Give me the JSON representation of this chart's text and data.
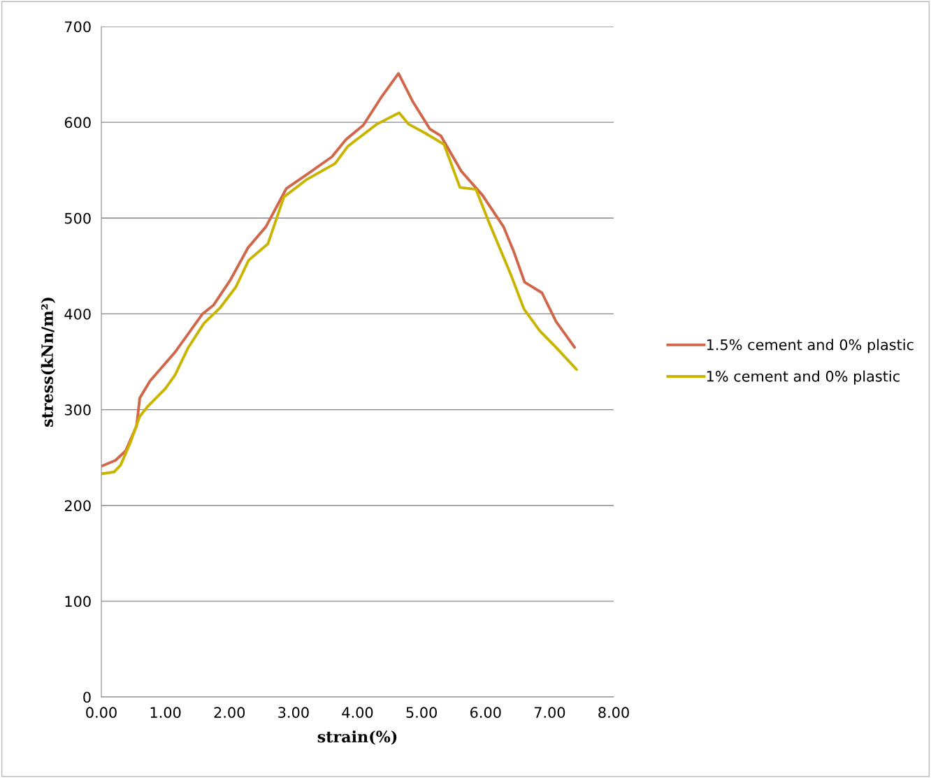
{
  "chart_data": {
    "type": "line",
    "xlabel": "strain(%)",
    "ylabel": "stress(kNn/m²)",
    "xlim": [
      0,
      8
    ],
    "xticks": [
      {
        "value": 0,
        "label": "0.00"
      },
      {
        "value": 1,
        "label": "1.00"
      },
      {
        "value": 2,
        "label": "2.00"
      },
      {
        "value": 3,
        "label": "3.00"
      },
      {
        "value": 4,
        "label": "4.00"
      },
      {
        "value": 5,
        "label": "5.00"
      },
      {
        "value": 6,
        "label": "6.00"
      },
      {
        "value": 7,
        "label": "7.00"
      },
      {
        "value": 8,
        "label": "8.00"
      }
    ],
    "ylim": [
      0,
      700
    ],
    "yticks": [
      0,
      100,
      200,
      300,
      400,
      500,
      600,
      700
    ],
    "grid": "y",
    "legend": "right",
    "marker": "none",
    "line_style": "solid",
    "series": [
      {
        "name": "1.5% cement and 0% plastic",
        "color": "#d0664a",
        "x": [
          0,
          0.22,
          0.38,
          0.55,
          0.6,
          0.76,
          1.15,
          1.58,
          1.75,
          2.02,
          2.29,
          2.57,
          2.89,
          3.22,
          3.6,
          3.82,
          4.09,
          4.37,
          4.64,
          4.86,
          5.13,
          5.3,
          5.62,
          5.95,
          6.28,
          6.44,
          6.61,
          6.88,
          7.1,
          7.39
        ],
        "values": [
          241,
          247,
          257,
          283,
          312,
          330,
          360,
          400,
          409,
          436,
          469,
          491,
          531,
          546,
          564,
          582,
          597,
          626,
          651,
          622,
          593,
          586,
          549,
          524,
          491,
          465,
          433,
          422,
          392,
          365
        ]
      },
      {
        "name": "1% cement and 0% plastic",
        "color": "#c9b400",
        "x": [
          0,
          0.2,
          0.3,
          0.45,
          0.6,
          0.72,
          1.0,
          1.15,
          1.35,
          1.6,
          1.85,
          2.1,
          2.3,
          2.6,
          2.85,
          3.2,
          3.65,
          3.85,
          4.3,
          4.65,
          4.8,
          5.05,
          5.35,
          5.6,
          5.85,
          6.05,
          6.4,
          6.6,
          6.85,
          7.1,
          7.42
        ],
        "values": [
          233,
          235,
          242,
          265,
          293,
          303,
          322,
          336,
          364,
          390,
          406,
          428,
          456,
          473,
          522,
          540,
          557,
          575,
          598,
          610,
          598,
          589,
          577,
          532,
          530,
          496,
          440,
          405,
          382,
          365,
          342
        ]
      }
    ]
  }
}
